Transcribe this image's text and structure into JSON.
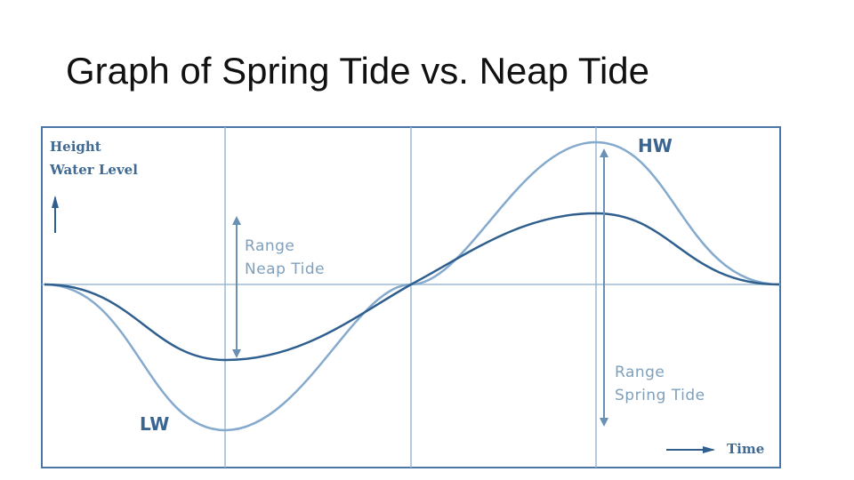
{
  "title": "Graph of Spring Tide vs. Neap Tide",
  "diagram": {
    "axis_label_line1": "Height",
    "axis_label_line2": "Water Level",
    "neap_range_line1": "Range",
    "neap_range_line2": "Neap Tide",
    "spring_range_line1": "Range",
    "spring_range_line2": "Spring Tide",
    "high_water": "HW",
    "low_water": "LW",
    "time_label": "Time"
  },
  "colors": {
    "frame": "#4a77a6",
    "grid": "#9db8d2",
    "neap_curve": "#2f5f8f",
    "spring_curve": "#85aacd",
    "arrows": "#6a90b4"
  }
}
